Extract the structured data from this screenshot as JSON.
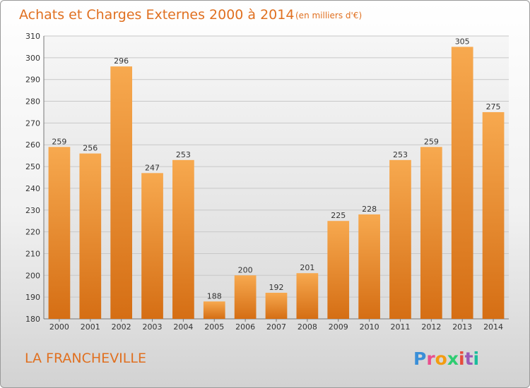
{
  "chart_data": {
    "type": "bar",
    "title": "Achats et Charges Externes 2000 à 2014",
    "subtitle": "(en milliers d'€)",
    "categories": [
      "2000",
      "2001",
      "2002",
      "2003",
      "2004",
      "2005",
      "2006",
      "2007",
      "2008",
      "2009",
      "2010",
      "2011",
      "2012",
      "2013",
      "2014"
    ],
    "values": [
      259,
      256,
      296,
      247,
      253,
      188,
      200,
      192,
      201,
      225,
      228,
      253,
      259,
      305,
      275
    ],
    "ylim": [
      180,
      310
    ],
    "yticks": [
      180,
      190,
      200,
      210,
      220,
      230,
      240,
      250,
      260,
      270,
      280,
      290,
      300,
      310
    ],
    "grid": true,
    "bar_color_top": "#f7a94f",
    "bar_color_bottom": "#d56e14"
  },
  "commune": "LA FRANCHEVILLE",
  "logo": {
    "text": "Proxiti",
    "letter_colors": [
      "#3a8fd8",
      "#e94e8e",
      "#f39c12",
      "#2ecc71",
      "#e74c3c",
      "#9b59b6",
      "#1abc9c"
    ]
  }
}
